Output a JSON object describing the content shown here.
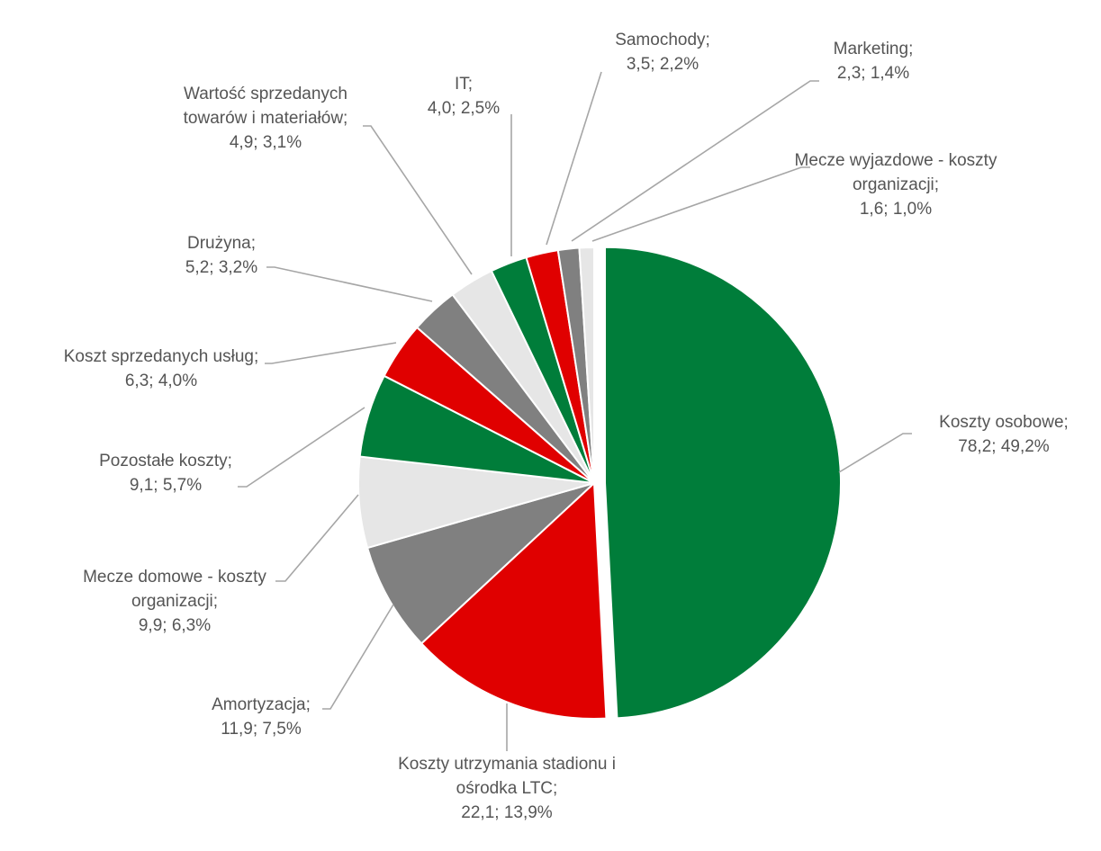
{
  "chart_data": {
    "type": "pie",
    "title": "",
    "slices": [
      {
        "name": "Koszty osobowe",
        "value": 78.2,
        "percent": 49.2,
        "label_lines": [
          "Koszty osobowe;",
          "78,2; 49,2%"
        ],
        "color": "#007d3a",
        "exploded": true
      },
      {
        "name": "Koszty utrzymania stadionu i ośrodka LTC",
        "value": 22.1,
        "percent": 13.9,
        "label_lines": [
          "Koszty utrzymania stadionu i",
          "ośrodka LTC;",
          "22,1; 13,9%"
        ],
        "color": "#e00000",
        "exploded": false
      },
      {
        "name": "Amortyzacja",
        "value": 11.9,
        "percent": 7.5,
        "label_lines": [
          "Amortyzacja;",
          "11,9; 7,5%"
        ],
        "color": "#808080",
        "exploded": false
      },
      {
        "name": "Mecze domowe - koszty organizacji",
        "value": 9.9,
        "percent": 6.3,
        "label_lines": [
          "Mecze domowe - koszty",
          "organizacji;",
          "9,9; 6,3%"
        ],
        "color": "#e6e6e6",
        "exploded": false
      },
      {
        "name": "Pozostałe koszty",
        "value": 9.1,
        "percent": 5.7,
        "label_lines": [
          "Pozostałe koszty;",
          "9,1; 5,7%"
        ],
        "color": "#007d3a",
        "exploded": false
      },
      {
        "name": "Koszt sprzedanych usług",
        "value": 6.3,
        "percent": 4.0,
        "label_lines": [
          "Koszt sprzedanych usług;",
          "6,3; 4,0%"
        ],
        "color": "#e00000",
        "exploded": false
      },
      {
        "name": "Drużyna",
        "value": 5.2,
        "percent": 3.2,
        "label_lines": [
          "Drużyna;",
          "5,2; 3,2%"
        ],
        "color": "#808080",
        "exploded": false
      },
      {
        "name": "Wartość sprzedanych towarów i materiałów",
        "value": 4.9,
        "percent": 3.1,
        "label_lines": [
          "Wartość sprzedanych",
          "towarów i materiałów;",
          "4,9; 3,1%"
        ],
        "color": "#e6e6e6",
        "exploded": false
      },
      {
        "name": "IT",
        "value": 4.0,
        "percent": 2.5,
        "label_lines": [
          "IT;",
          "4,0; 2,5%"
        ],
        "color": "#007d3a",
        "exploded": false
      },
      {
        "name": "Samochody",
        "value": 3.5,
        "percent": 2.2,
        "label_lines": [
          "Samochody;",
          "3,5; 2,2%"
        ],
        "color": "#e00000",
        "exploded": false
      },
      {
        "name": "Marketing",
        "value": 2.3,
        "percent": 1.4,
        "label_lines": [
          "Marketing;",
          "2,3; 1,4%"
        ],
        "color": "#808080",
        "exploded": false
      },
      {
        "name": "Mecze wyjazdowe - koszty organizacji",
        "value": 1.6,
        "percent": 1.0,
        "label_lines": [
          "Mecze wyjazdowe - koszty",
          "organizacji;",
          "1,6; 1,0%"
        ],
        "color": "#e6e6e6",
        "exploded": false
      }
    ],
    "start_angle_deg": 0,
    "direction": "clockwise",
    "legend": "none",
    "data_labels": "outside with leader lines"
  }
}
